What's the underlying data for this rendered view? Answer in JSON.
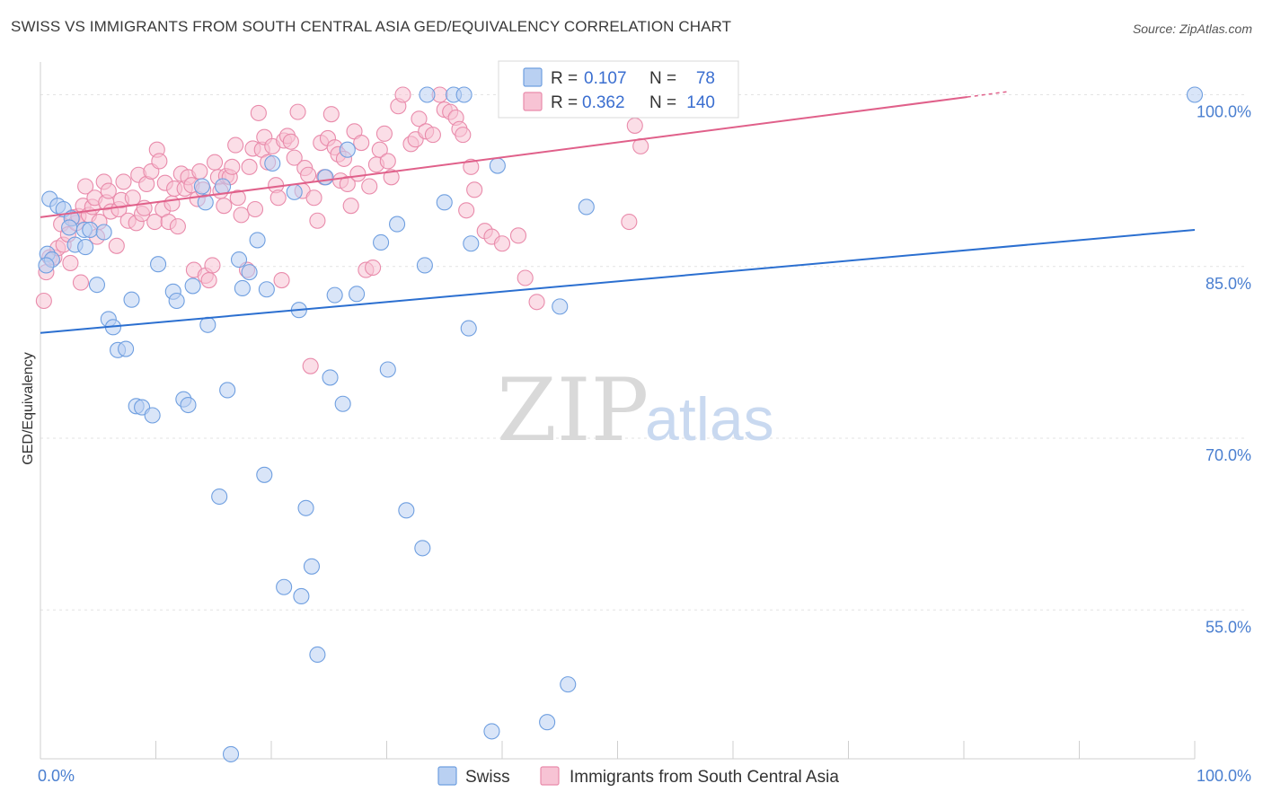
{
  "header": {
    "title": "SWISS VS IMMIGRANTS FROM SOUTH CENTRAL ASIA GED/EQUIVALENCY CORRELATION CHART",
    "source": "Source: ZipAtlas.com"
  },
  "watermark": {
    "part1": "ZIP",
    "part2": "atlas"
  },
  "legend": {
    "r_label": "R =",
    "n_label": "N =",
    "rows": [
      {
        "r": "0.107",
        "n": "78"
      },
      {
        "r": "0.362",
        "n": "140"
      }
    ]
  },
  "colors": {
    "swiss": "#6f9fe0",
    "swiss_fill": "#b9d0f2",
    "swiss_line": "#2b6fd0",
    "immig": "#e98bab",
    "immig_fill": "#f7c3d4",
    "immig_line": "#e0608a",
    "tick_text": "#4a7fd0"
  },
  "chart_data": {
    "type": "scatter",
    "title": "SWISS VS IMMIGRANTS FROM SOUTH CENTRAL ASIA GED/EQUIVALENCY CORRELATION CHART",
    "ylabel": "GED/Equivalency",
    "xlim": [
      0,
      100
    ],
    "ylim": [
      42,
      102
    ],
    "y_ticks": [
      {
        "value": 100,
        "label": "100.0%"
      },
      {
        "value": 85,
        "label": "85.0%"
      },
      {
        "value": 70,
        "label": "70.0%"
      },
      {
        "value": 55,
        "label": "55.0%"
      }
    ],
    "x_ticks": [
      {
        "value": 0,
        "label": "0.0%"
      },
      {
        "value": 100,
        "label": "100.0%"
      }
    ],
    "grid": true,
    "legend_position": "top-center",
    "series": [
      {
        "name": "Swiss",
        "stats": {
          "R": 0.107,
          "N": 78
        },
        "trend": {
          "x0": 0,
          "y0": 79.2,
          "x1": 100,
          "y1": 88.2
        },
        "points": [
          [
            0.6,
            86.1
          ],
          [
            1.0,
            85.6
          ],
          [
            0.5,
            85.1
          ],
          [
            0.8,
            90.9
          ],
          [
            1.5,
            90.3
          ],
          [
            2.0,
            90.0
          ],
          [
            2.7,
            89.2
          ],
          [
            2.5,
            88.4
          ],
          [
            3.0,
            86.9
          ],
          [
            3.8,
            88.2
          ],
          [
            4.3,
            88.2
          ],
          [
            5.5,
            88.0
          ],
          [
            3.9,
            86.7
          ],
          [
            4.9,
            83.4
          ],
          [
            5.9,
            80.4
          ],
          [
            6.3,
            79.7
          ],
          [
            6.7,
            77.7
          ],
          [
            7.4,
            77.8
          ],
          [
            7.9,
            82.1
          ],
          [
            8.3,
            72.8
          ],
          [
            8.8,
            72.7
          ],
          [
            9.7,
            72.0
          ],
          [
            10.2,
            85.2
          ],
          [
            11.5,
            82.8
          ],
          [
            11.8,
            82.0
          ],
          [
            12.4,
            73.4
          ],
          [
            12.8,
            72.9
          ],
          [
            13.2,
            83.3
          ],
          [
            14.0,
            92.0
          ],
          [
            14.3,
            90.6
          ],
          [
            14.5,
            79.9
          ],
          [
            15.5,
            64.9
          ],
          [
            15.8,
            92.0
          ],
          [
            16.2,
            74.2
          ],
          [
            16.5,
            42.4
          ],
          [
            17.2,
            85.6
          ],
          [
            17.5,
            83.1
          ],
          [
            18.1,
            84.5
          ],
          [
            18.8,
            87.3
          ],
          [
            19.4,
            66.8
          ],
          [
            19.6,
            83.0
          ],
          [
            20.1,
            94.0
          ],
          [
            21.1,
            57.0
          ],
          [
            22.0,
            91.5
          ],
          [
            22.4,
            81.2
          ],
          [
            22.6,
            56.2
          ],
          [
            23.0,
            63.9
          ],
          [
            23.5,
            58.8
          ],
          [
            24.0,
            51.1
          ],
          [
            24.7,
            92.8
          ],
          [
            25.1,
            75.3
          ],
          [
            25.5,
            82.5
          ],
          [
            26.2,
            73.0
          ],
          [
            26.6,
            95.2
          ],
          [
            27.4,
            82.6
          ],
          [
            29.5,
            87.1
          ],
          [
            30.1,
            76.0
          ],
          [
            30.9,
            88.7
          ],
          [
            31.7,
            63.7
          ],
          [
            33.1,
            60.4
          ],
          [
            33.3,
            85.1
          ],
          [
            33.5,
            100.0
          ],
          [
            35.0,
            90.6
          ],
          [
            35.8,
            100.0
          ],
          [
            36.7,
            100.0
          ],
          [
            37.1,
            79.6
          ],
          [
            37.3,
            87.0
          ],
          [
            39.1,
            44.4
          ],
          [
            39.6,
            93.8
          ],
          [
            41.0,
            100.0
          ],
          [
            42.5,
            100.0
          ],
          [
            43.9,
            45.2
          ],
          [
            45.0,
            81.5
          ],
          [
            45.7,
            48.5
          ],
          [
            47.3,
            90.2
          ],
          [
            51.0,
            100.0
          ],
          [
            52.5,
            100.0
          ],
          [
            100.0,
            100.0
          ]
        ]
      },
      {
        "name": "Immigrants from South Central Asia",
        "stats": {
          "R": 0.362,
          "N": 140
        },
        "trend": {
          "x0": 0,
          "y0": 89.3,
          "x1": 80.3,
          "y1": 99.8
        },
        "trend_dashed": {
          "x0": 80.3,
          "y0": 99.8,
          "x1": 84.0,
          "y1": 100.3
        },
        "points": [
          [
            0.3,
            82.0
          ],
          [
            0.5,
            84.5
          ],
          [
            0.8,
            85.8
          ],
          [
            1.2,
            85.8
          ],
          [
            1.5,
            86.6
          ],
          [
            1.8,
            88.7
          ],
          [
            2.0,
            86.9
          ],
          [
            2.4,
            87.8
          ],
          [
            2.6,
            85.3
          ],
          [
            2.8,
            89.3
          ],
          [
            3.1,
            88.8
          ],
          [
            3.3,
            89.4
          ],
          [
            3.5,
            83.6
          ],
          [
            3.7,
            90.3
          ],
          [
            3.9,
            92.0
          ],
          [
            4.2,
            89.5
          ],
          [
            4.5,
            90.2
          ],
          [
            4.7,
            91.0
          ],
          [
            4.9,
            87.6
          ],
          [
            5.1,
            88.9
          ],
          [
            5.5,
            92.4
          ],
          [
            5.7,
            90.6
          ],
          [
            5.9,
            91.6
          ],
          [
            6.1,
            89.8
          ],
          [
            6.6,
            86.8
          ],
          [
            6.8,
            90.0
          ],
          [
            7.0,
            90.8
          ],
          [
            7.2,
            92.4
          ],
          [
            7.6,
            89.0
          ],
          [
            8.0,
            91.0
          ],
          [
            8.3,
            88.8
          ],
          [
            8.5,
            93.0
          ],
          [
            8.8,
            89.6
          ],
          [
            9.0,
            90.1
          ],
          [
            9.2,
            92.2
          ],
          [
            9.6,
            93.3
          ],
          [
            9.9,
            88.9
          ],
          [
            10.1,
            95.2
          ],
          [
            10.3,
            94.2
          ],
          [
            10.6,
            90.0
          ],
          [
            10.8,
            92.3
          ],
          [
            11.1,
            88.9
          ],
          [
            11.4,
            90.5
          ],
          [
            11.6,
            91.8
          ],
          [
            11.9,
            88.5
          ],
          [
            12.2,
            93.1
          ],
          [
            12.5,
            91.8
          ],
          [
            12.8,
            92.8
          ],
          [
            13.1,
            92.1
          ],
          [
            13.3,
            84.7
          ],
          [
            13.6,
            90.9
          ],
          [
            13.8,
            93.3
          ],
          [
            14.1,
            91.7
          ],
          [
            14.3,
            84.2
          ],
          [
            14.6,
            83.8
          ],
          [
            14.9,
            85.1
          ],
          [
            15.1,
            94.1
          ],
          [
            15.4,
            92.8
          ],
          [
            15.6,
            91.6
          ],
          [
            15.9,
            90.3
          ],
          [
            16.1,
            92.9
          ],
          [
            16.4,
            92.8
          ],
          [
            16.6,
            93.7
          ],
          [
            16.9,
            95.6
          ],
          [
            17.1,
            91.0
          ],
          [
            17.4,
            89.5
          ],
          [
            17.9,
            84.7
          ],
          [
            18.1,
            93.7
          ],
          [
            18.4,
            95.3
          ],
          [
            18.6,
            90.0
          ],
          [
            18.9,
            98.4
          ],
          [
            19.2,
            95.2
          ],
          [
            19.4,
            96.3
          ],
          [
            19.7,
            94.1
          ],
          [
            20.1,
            95.5
          ],
          [
            20.4,
            92.1
          ],
          [
            20.6,
            91.0
          ],
          [
            20.9,
            83.8
          ],
          [
            21.1,
            96.0
          ],
          [
            21.4,
            96.4
          ],
          [
            21.7,
            95.9
          ],
          [
            22.0,
            94.5
          ],
          [
            22.3,
            98.5
          ],
          [
            22.7,
            91.6
          ],
          [
            22.9,
            93.6
          ],
          [
            23.2,
            93.0
          ],
          [
            23.4,
            76.3
          ],
          [
            23.7,
            91.0
          ],
          [
            24.0,
            89.0
          ],
          [
            24.3,
            95.8
          ],
          [
            24.6,
            92.8
          ],
          [
            24.9,
            96.2
          ],
          [
            25.2,
            98.3
          ],
          [
            25.5,
            95.4
          ],
          [
            25.8,
            94.8
          ],
          [
            26.0,
            92.5
          ],
          [
            26.3,
            94.4
          ],
          [
            26.6,
            92.2
          ],
          [
            26.9,
            90.3
          ],
          [
            27.2,
            96.8
          ],
          [
            27.5,
            93.1
          ],
          [
            27.8,
            95.8
          ],
          [
            28.2,
            84.7
          ],
          [
            28.5,
            92.0
          ],
          [
            28.8,
            84.9
          ],
          [
            29.1,
            93.9
          ],
          [
            29.4,
            95.2
          ],
          [
            29.8,
            96.6
          ],
          [
            30.1,
            94.2
          ],
          [
            30.4,
            92.8
          ],
          [
            31.0,
            99.0
          ],
          [
            31.4,
            100.0
          ],
          [
            32.1,
            95.7
          ],
          [
            32.5,
            96.1
          ],
          [
            32.8,
            97.9
          ],
          [
            33.4,
            96.8
          ],
          [
            34.0,
            96.5
          ],
          [
            34.6,
            100.0
          ],
          [
            35.0,
            98.7
          ],
          [
            35.5,
            98.5
          ],
          [
            36.0,
            98.0
          ],
          [
            36.3,
            97.0
          ],
          [
            36.6,
            96.5
          ],
          [
            36.9,
            89.9
          ],
          [
            37.3,
            93.7
          ],
          [
            37.6,
            91.7
          ],
          [
            38.5,
            88.1
          ],
          [
            39.1,
            87.6
          ],
          [
            40.0,
            87.0
          ],
          [
            41.4,
            87.7
          ],
          [
            42.0,
            84.0
          ],
          [
            43.0,
            81.9
          ],
          [
            51.0,
            88.9
          ],
          [
            51.5,
            97.3
          ],
          [
            52.0,
            95.5
          ]
        ]
      }
    ]
  },
  "bottom_legend": [
    {
      "label": "Swiss"
    },
    {
      "label": "Immigrants from South Central Asia"
    }
  ]
}
